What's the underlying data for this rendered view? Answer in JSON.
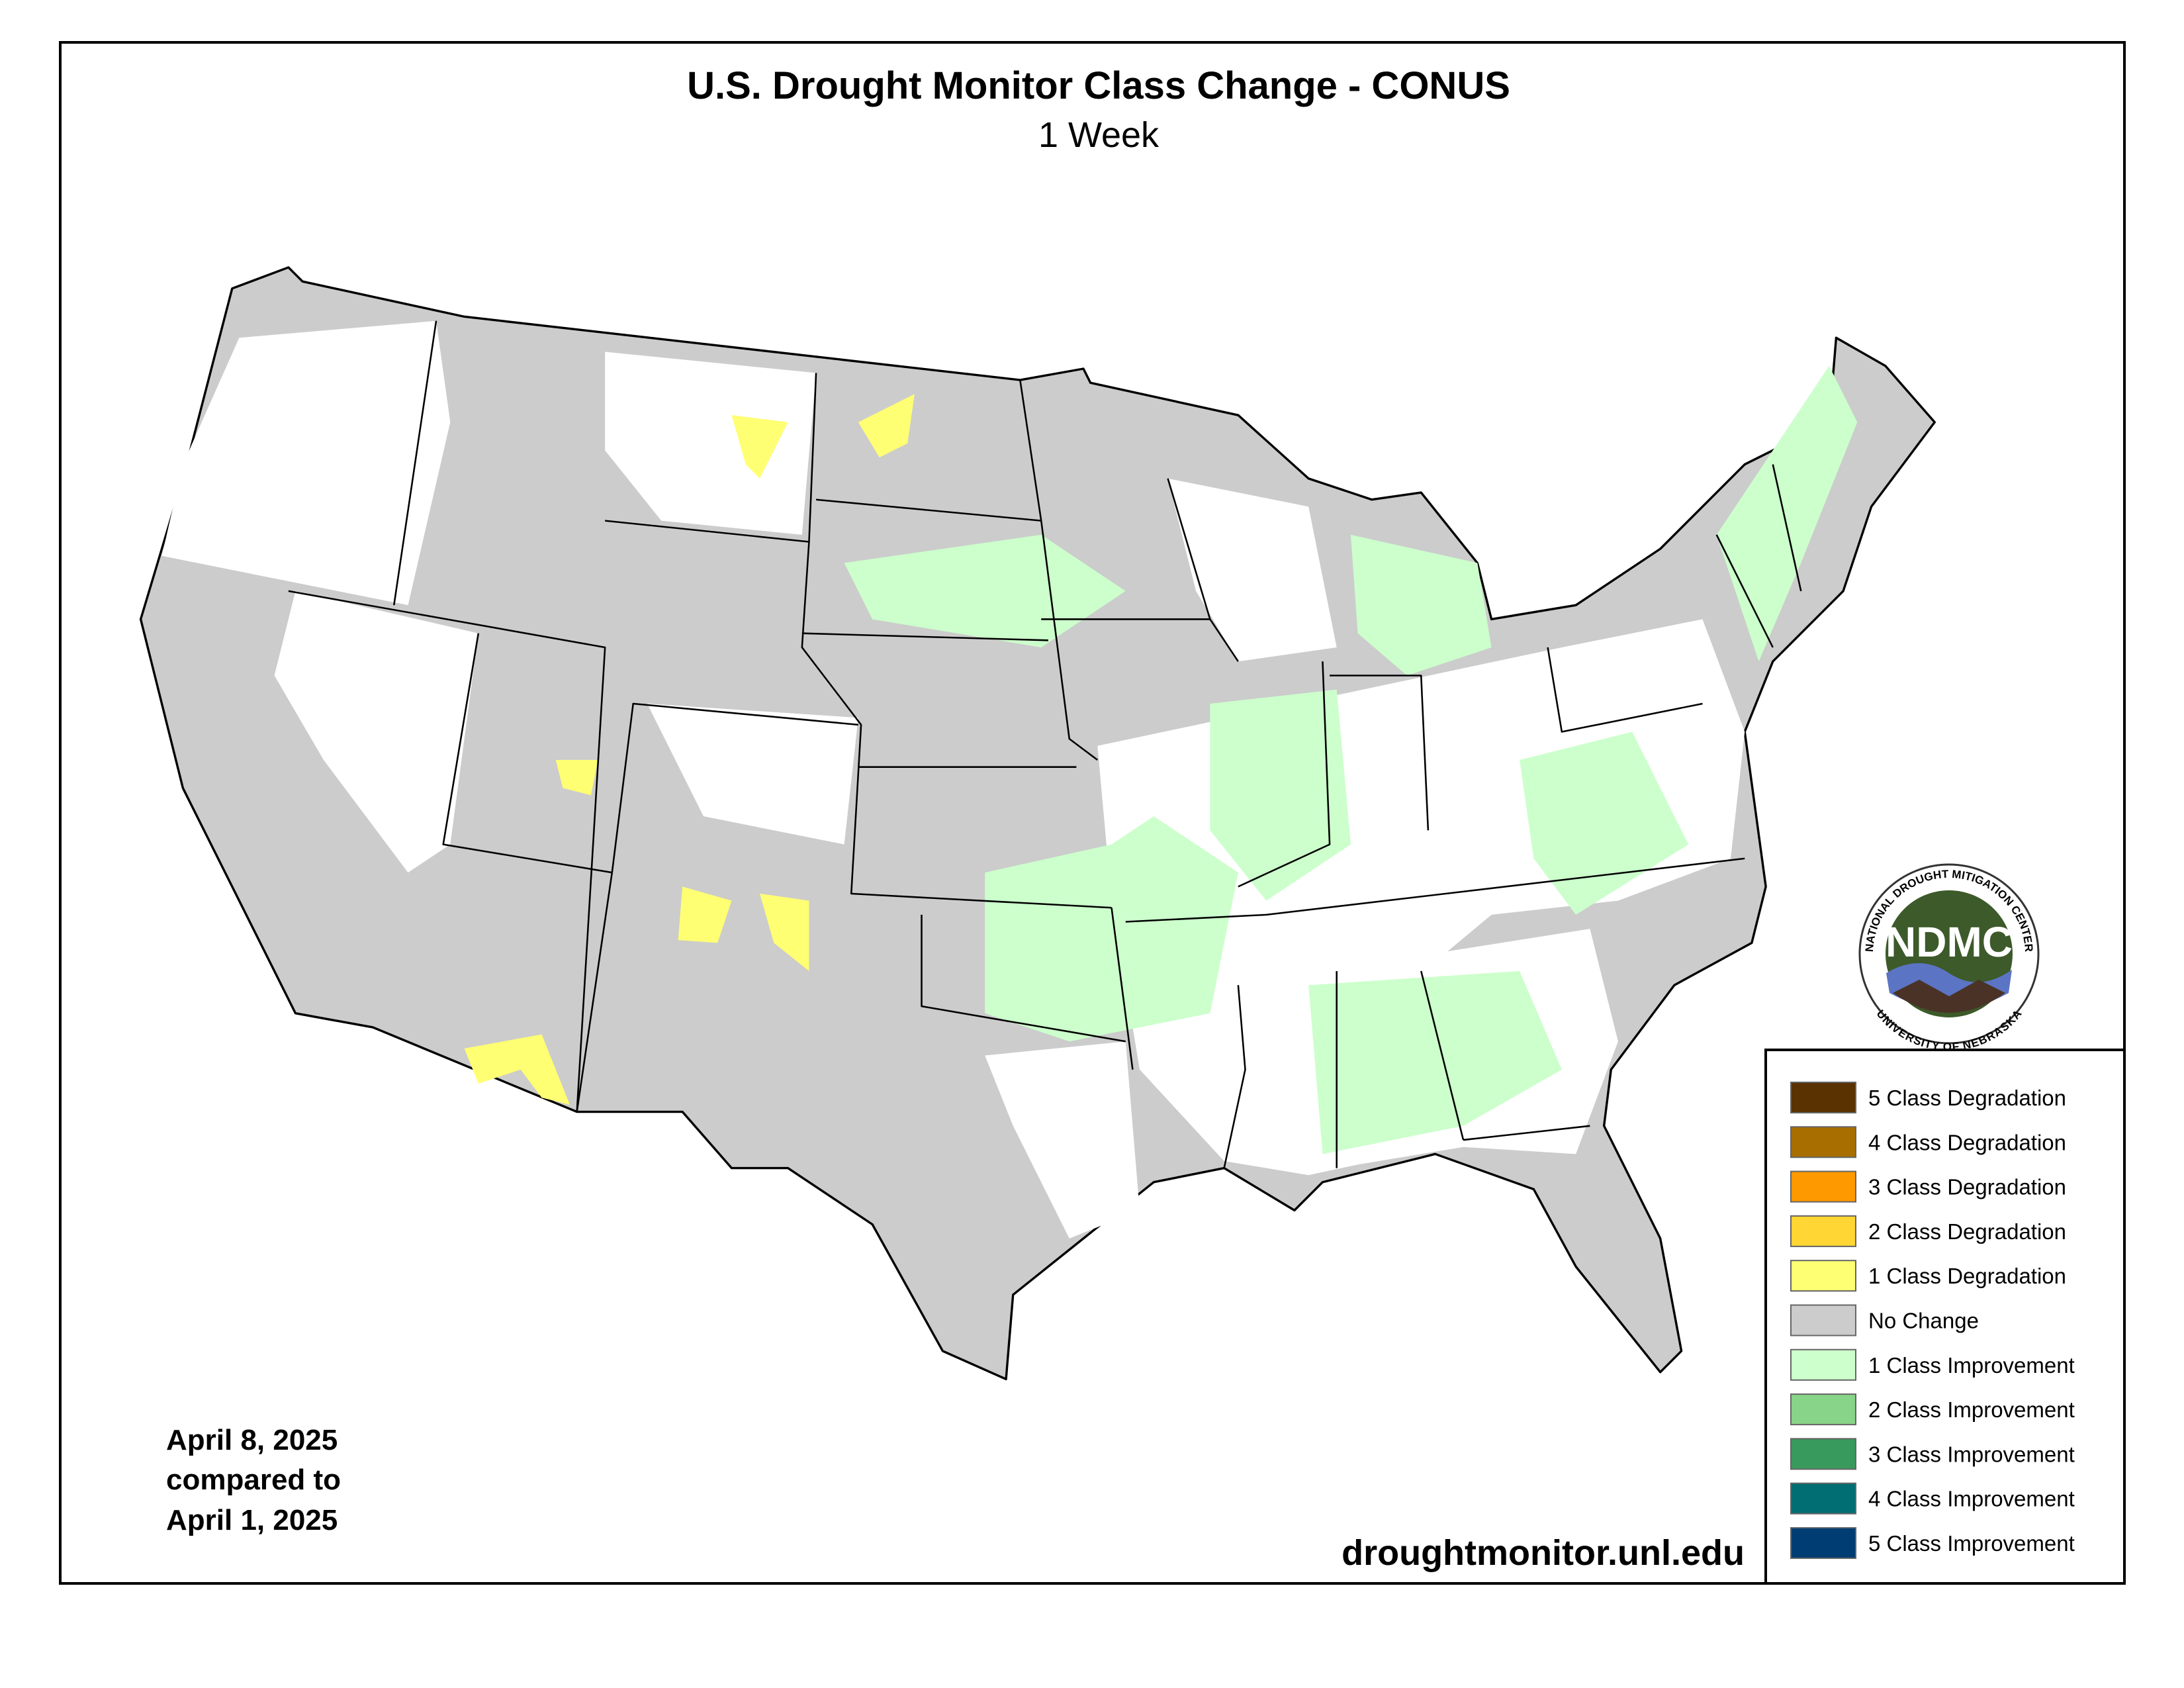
{
  "header": {
    "title": "U.S. Drought Monitor Class Change - CONUS",
    "subtitle": "1 Week"
  },
  "dates": [
    "April 8, 2025",
    "compared to",
    "April 1, 2025"
  ],
  "source_url": "droughtmonitor.unl.edu",
  "logo": {
    "acronym": "NDMC",
    "top_text": "NATIONAL DROUGHT MITIGATION CENTER",
    "bottom_text": "UNIVERSITY OF NEBRASKA"
  },
  "legend": [
    {
      "label": "5 Class Degradation",
      "color": "#5a3100"
    },
    {
      "label": "4 Class Degradation",
      "color": "#a86e00"
    },
    {
      "label": "3 Class Degradation",
      "color": "#ff9900"
    },
    {
      "label": "2 Class Degradation",
      "color": "#ffd633"
    },
    {
      "label": "1 Class Degradation",
      "color": "#ffff73"
    },
    {
      "label": "No Change",
      "color": "#cccccc"
    },
    {
      "label": "1 Class Improvement",
      "color": "#ccffcc"
    },
    {
      "label": "2 Class Improvement",
      "color": "#88d488"
    },
    {
      "label": "3 Class Improvement",
      "color": "#389a5c"
    },
    {
      "label": "4 Class Improvement",
      "color": "#006e73"
    },
    {
      "label": "5 Class Improvement",
      "color": "#003d73"
    }
  ]
}
